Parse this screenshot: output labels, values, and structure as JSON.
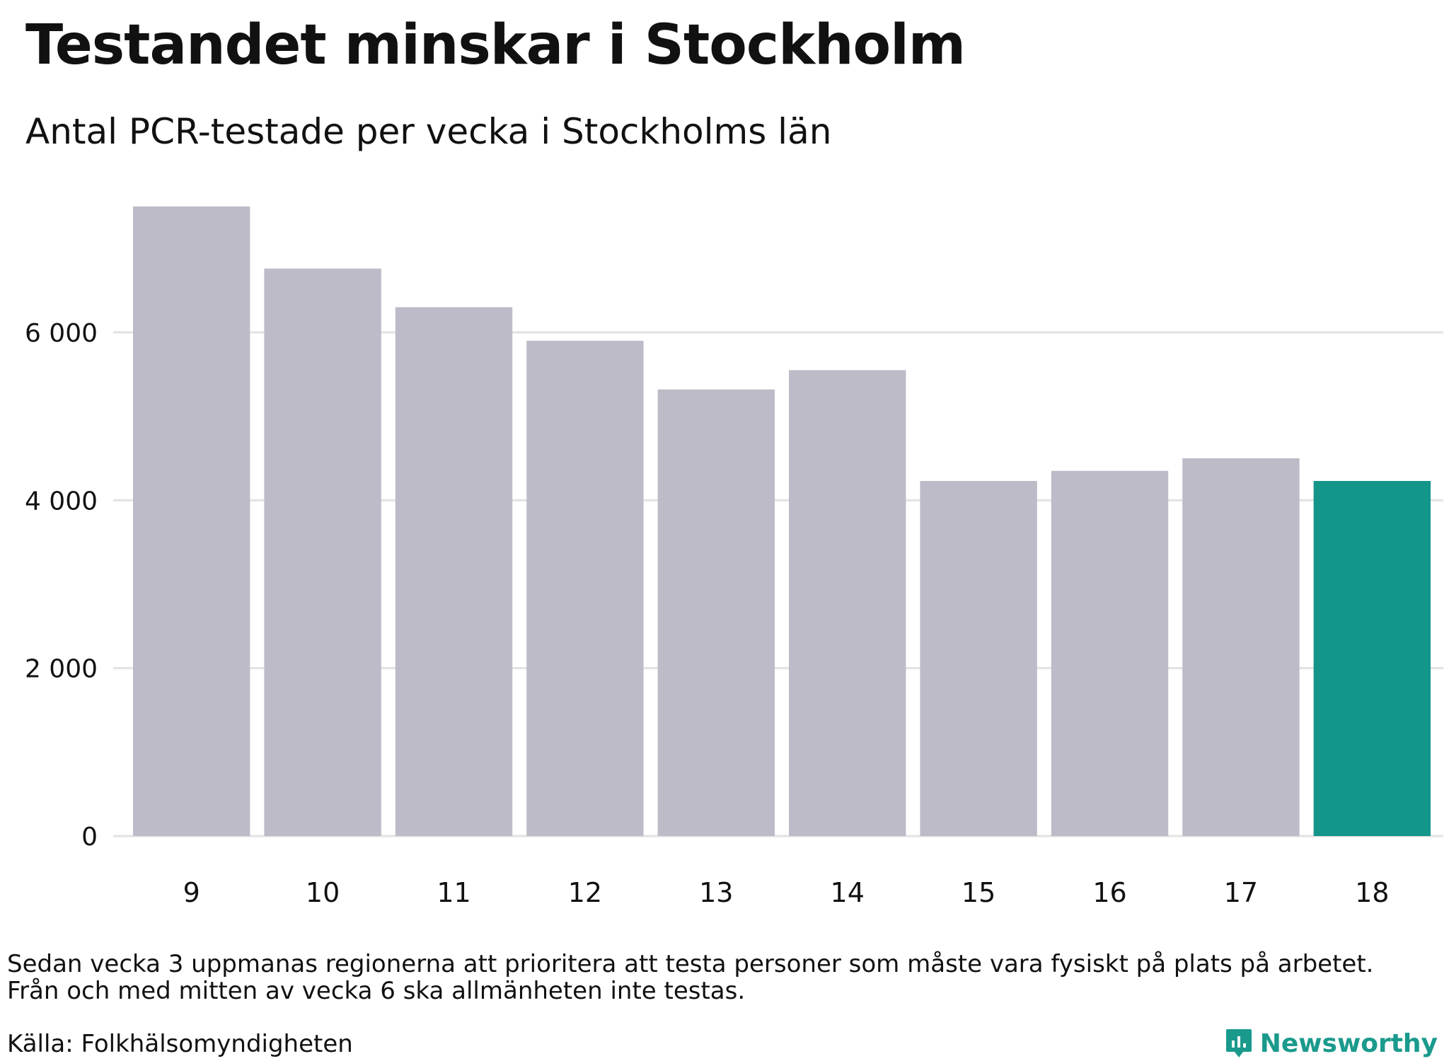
{
  "header": {
    "title": "Testandet minskar i Stockholm",
    "subtitle": "Antal PCR-testade per vecka i Stockholms län"
  },
  "footer": {
    "note_line1": "Sedan vecka 3 uppmanas regionerna att prioritera att testa personer som måste vara fysiskt på plats på arbetet.",
    "note_line2": "Från och med mitten av vecka 6 ska allmänheten inte testas.",
    "source": "Källa: Folkhälsomyndigheten",
    "brand": "Newsworthy"
  },
  "colors": {
    "bar_default": "#bdbbc8",
    "bar_highlight": "#14958a",
    "gridline": "#e2e2e2",
    "text": "#111111",
    "brand": "#1a9a8c"
  },
  "icons": {
    "brand": "newsworthy-logo-icon"
  },
  "chart_data": {
    "type": "bar",
    "title": "Testandet minskar i Stockholm",
    "subtitle": "Antal PCR-testade per vecka i Stockholms län",
    "xlabel": "",
    "ylabel": "",
    "categories": [
      "9",
      "10",
      "11",
      "12",
      "13",
      "14",
      "15",
      "16",
      "17",
      "18"
    ],
    "values": [
      7500,
      6760,
      6300,
      5900,
      5320,
      5550,
      4230,
      4350,
      4500,
      4230
    ],
    "highlight_index": 9,
    "ylim": [
      0,
      7600
    ],
    "yticks": [
      0,
      2000,
      4000,
      6000
    ],
    "ytick_labels": [
      "0",
      "2 000",
      "4 000",
      "6 000"
    ],
    "grid": "horizontal",
    "legend": "none"
  }
}
